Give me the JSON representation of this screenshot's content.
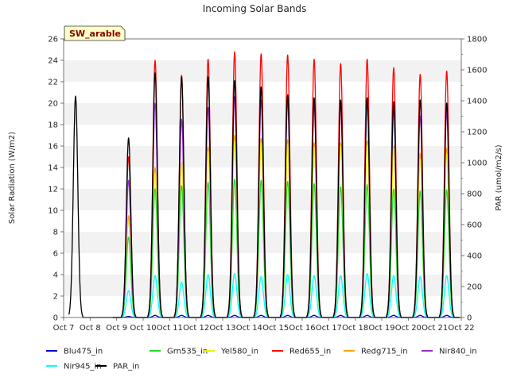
{
  "chart_data": {
    "type": "line",
    "title": "Incoming Solar Bands",
    "badge": "SW_arable",
    "ylabel": "Solar Radiation (W/m2)",
    "y2label": "PAR (umol/m2/s)",
    "xlabel": "",
    "ylim": [
      0,
      26
    ],
    "y2lim": [
      0,
      1800
    ],
    "yticks": [
      0,
      2,
      4,
      6,
      8,
      10,
      12,
      14,
      16,
      18,
      20,
      22,
      24,
      26
    ],
    "y2ticks": [
      0,
      200,
      400,
      600,
      800,
      1000,
      1200,
      1400,
      1600,
      1800
    ],
    "xticks": [
      "Oct 7",
      "Oct 8",
      "Oct 9",
      "Oct 10",
      "Oct 11",
      "Oct 12",
      "Oct 13",
      "Oct 14",
      "Oct 15",
      "Oct 16",
      "Oct 17",
      "Oct 18",
      "Oct 19",
      "Oct 20",
      "Oct 21",
      "Oct 22"
    ],
    "grid": "horizontal bands",
    "legend_position": "bottom",
    "daily_peaks": {
      "days": [
        "Oct 9",
        "Oct 10",
        "Oct 11",
        "Oct 12",
        "Oct 13",
        "Oct 14",
        "Oct 15",
        "Oct 16",
        "Oct 17",
        "Oct 18",
        "Oct 19",
        "Oct 20",
        "Oct 21"
      ],
      "noon_offset_days": 0.45
    },
    "series": [
      {
        "name": "Blu475_in",
        "color": "#0000cd",
        "axis": "left",
        "peaks": [
          0.1,
          0.2,
          0.2,
          0.2,
          0.2,
          0.2,
          0.2,
          0.2,
          0.2,
          0.2,
          0.2,
          0.2,
          0.2
        ]
      },
      {
        "name": "Grn535_in",
        "color": "#22dd22",
        "axis": "left",
        "peaks": [
          7.5,
          12.0,
          12.3,
          12.6,
          12.9,
          12.8,
          12.7,
          12.5,
          12.2,
          12.4,
          12.0,
          11.8,
          11.9
        ]
      },
      {
        "name": "Yel580_in",
        "color": "#eeee00",
        "axis": "left",
        "peaks": [
          9.0,
          13.5,
          14.5,
          15.5,
          16.5,
          16.3,
          16.2,
          15.9,
          16.0,
          16.1,
          15.8,
          14.8,
          15.3
        ]
      },
      {
        "name": "Red655_in",
        "color": "#ff0000",
        "axis": "left",
        "peaks": [
          15.0,
          24.0,
          22.6,
          24.1,
          24.8,
          24.6,
          24.5,
          24.1,
          23.7,
          24.1,
          23.3,
          22.7,
          23.0
        ]
      },
      {
        "name": "Redg715_in",
        "color": "#ffa500",
        "axis": "left",
        "peaks": [
          9.5,
          14.0,
          14.5,
          15.9,
          17.0,
          16.7,
          16.6,
          16.3,
          16.3,
          16.5,
          16.0,
          15.3,
          15.8
        ]
      },
      {
        "name": "Nir840_in",
        "color": "#9932cc",
        "axis": "left",
        "peaks": [
          12.8,
          20.0,
          18.5,
          19.6,
          20.6,
          20.3,
          20.2,
          19.8,
          19.9,
          20.2,
          19.4,
          18.8,
          19.2
        ]
      },
      {
        "name": "Nir945_in",
        "color": "#00ffff",
        "axis": "left",
        "peaks": [
          2.5,
          3.9,
          3.3,
          4.0,
          4.1,
          3.8,
          4.0,
          3.9,
          3.9,
          4.1,
          3.9,
          3.8,
          3.9
        ]
      },
      {
        "name": "PAR_in",
        "color": "#000000",
        "axis": "right",
        "peaks": [
          1160,
          1580,
          1555,
          1555,
          1530,
          1490,
          1440,
          1420,
          1405,
          1420,
          1395,
          1405,
          1385
        ],
        "extra_peak": {
          "day": "Oct 7",
          "value": 1430
        }
      }
    ]
  }
}
